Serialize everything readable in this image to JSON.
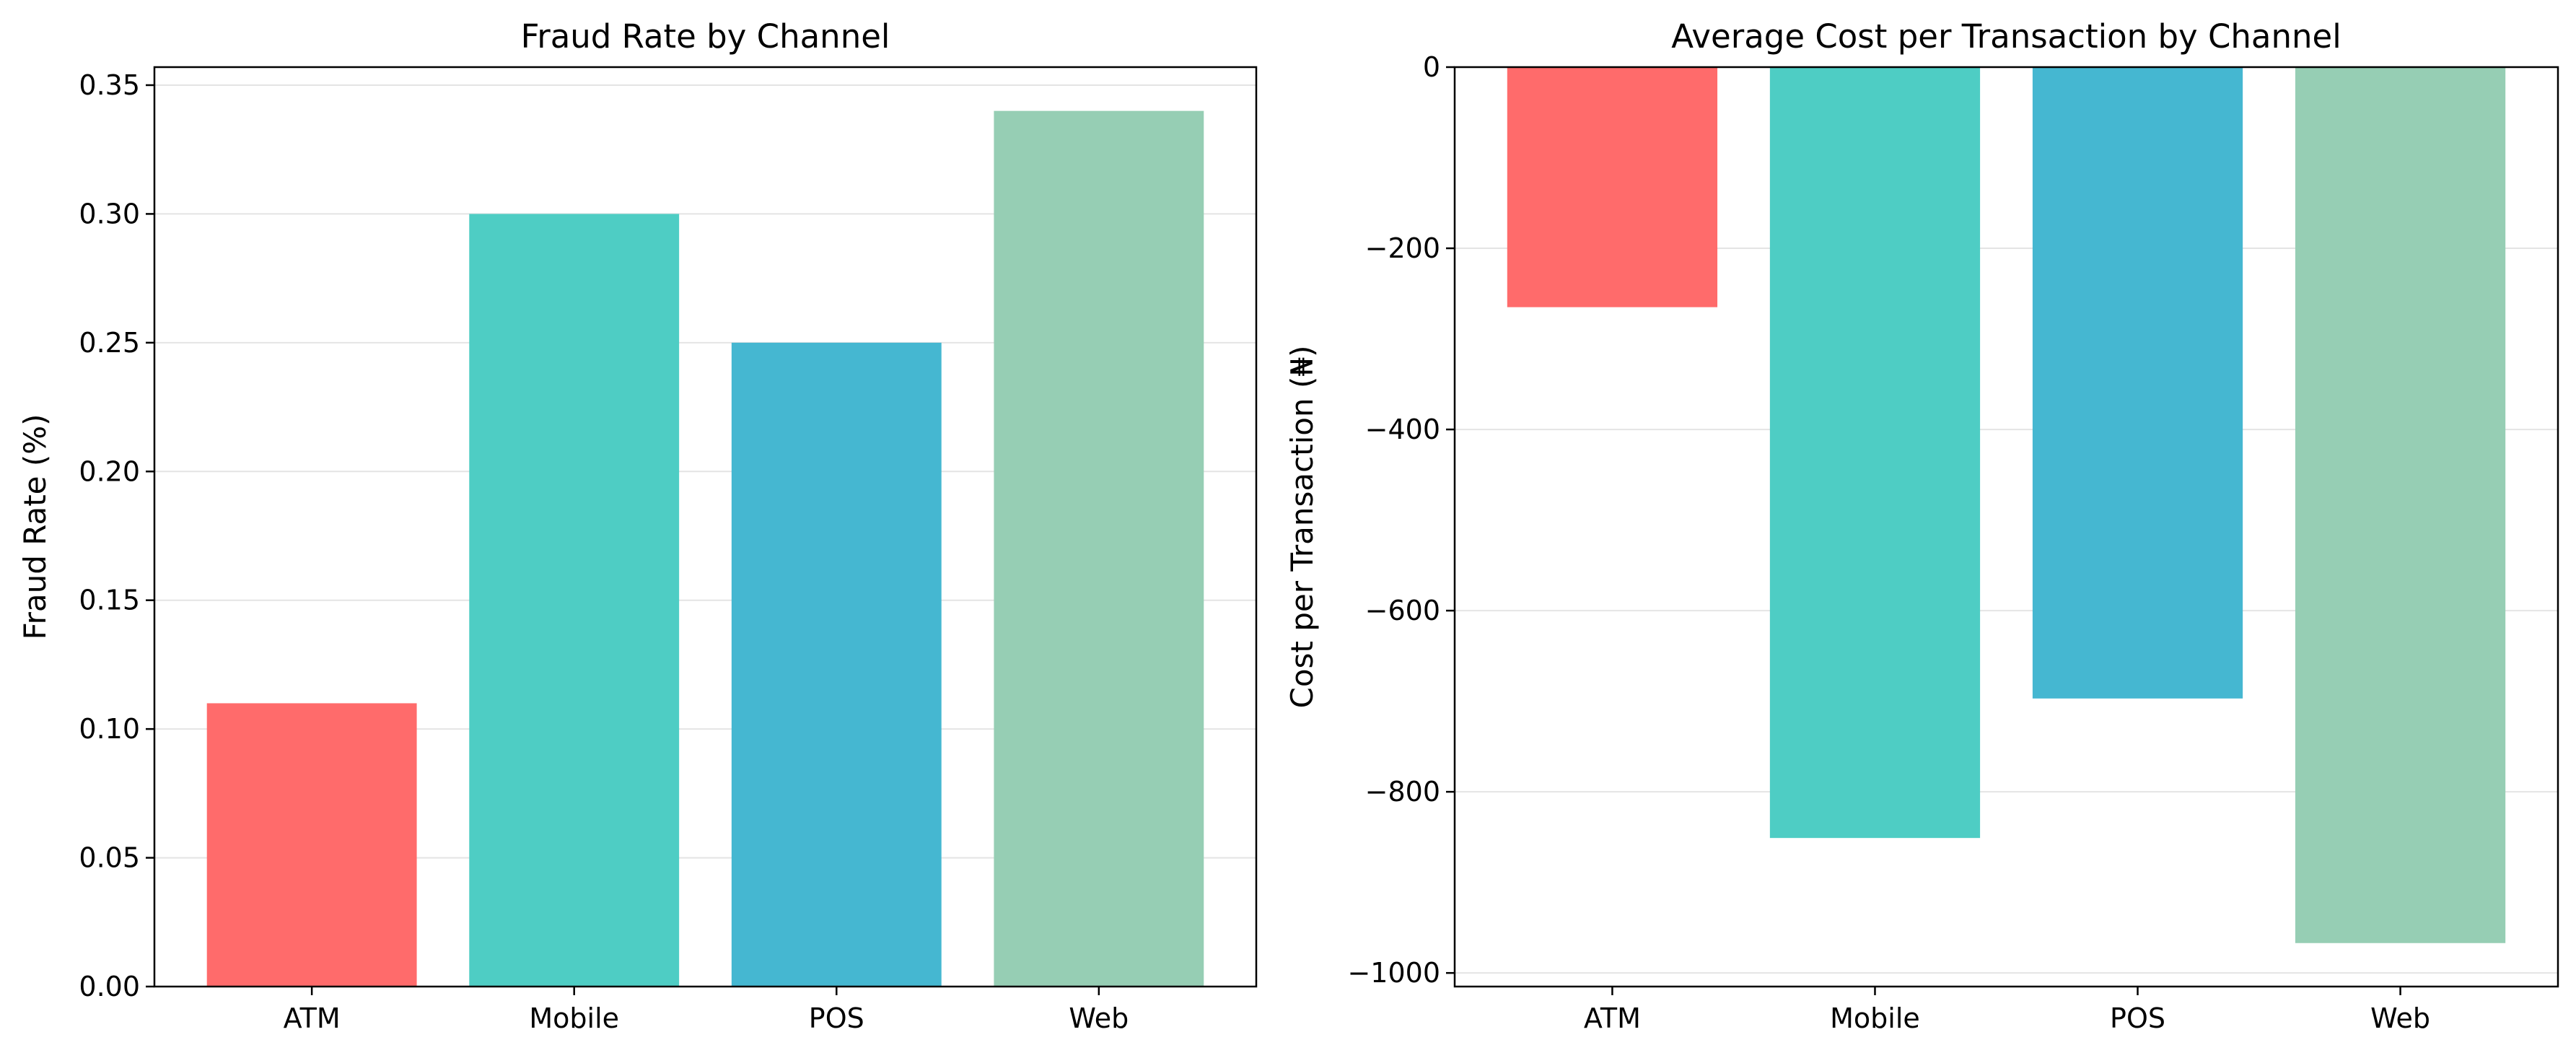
{
  "chart_data": [
    {
      "type": "bar",
      "title": "Fraud Rate by Channel",
      "xlabel": "",
      "ylabel": "Fraud Rate (%)",
      "categories": [
        "ATM",
        "Mobile",
        "POS",
        "Web"
      ],
      "values": [
        0.11,
        0.3,
        0.25,
        0.34
      ],
      "colors": [
        "#FF6B6B",
        "#4ECDC4",
        "#45B7D1",
        "#96CEB4"
      ],
      "ylim": [
        0,
        0.357
      ],
      "yticks": [
        0.0,
        0.05,
        0.1,
        0.15,
        0.2,
        0.25,
        0.3,
        0.35
      ],
      "ytick_labels": [
        "0.00",
        "0.05",
        "0.10",
        "0.15",
        "0.20",
        "0.25",
        "0.30",
        "0.35"
      ],
      "grid": "y"
    },
    {
      "type": "bar",
      "title": "Average Cost per Transaction by Channel",
      "xlabel": "",
      "ylabel": "Cost per Transaction (₦)",
      "categories": [
        "ATM",
        "Mobile",
        "POS",
        "Web"
      ],
      "values": [
        -265,
        -851,
        -697,
        -967
      ],
      "colors": [
        "#FF6B6B",
        "#4ECDC4",
        "#45B7D1",
        "#96CEB4"
      ],
      "ylim": [
        -1015,
        0
      ],
      "yticks": [
        0,
        -200,
        -400,
        -600,
        -800,
        -1000
      ],
      "ytick_labels": [
        "0",
        "−200",
        "−400",
        "−600",
        "−800",
        "−1000"
      ],
      "grid": "y"
    }
  ]
}
